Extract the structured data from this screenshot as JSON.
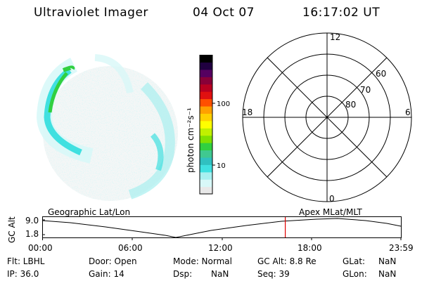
{
  "header": {
    "instrument": "Ultraviolet Imager",
    "date": "04 Oct 07",
    "time": "16:17:02 UT"
  },
  "colorbar": {
    "unit_label": "photon cm⁻²s⁻¹",
    "ticks": [
      "100",
      "10"
    ],
    "scale": "log",
    "colors": [
      "#e8e8e8",
      "#d8f8f8",
      "#a8f0f0",
      "#40e0e0",
      "#30c0c0",
      "#40c890",
      "#30d040",
      "#80e000",
      "#c0f000",
      "#ffff00",
      "#ffd000",
      "#ffa000",
      "#ff5000",
      "#e01010",
      "#b80020",
      "#880038",
      "#550060",
      "#200040",
      "#000000"
    ]
  },
  "polar_grid": {
    "mlt_labels": {
      "top": "12",
      "bottom": "0",
      "left": "18",
      "right": "6"
    },
    "lat_labels": [
      "60",
      "70",
      "80"
    ]
  },
  "timeline": {
    "y_axis_label": "GC Alt",
    "y_ticks": [
      "9.0",
      "1.8"
    ],
    "left_title": "Geographic Lat/Lon",
    "right_title": "Apex  MLat/MLT",
    "x_ticks": [
      "00:00",
      "06:00",
      "12:00",
      "18:00",
      "23:59"
    ],
    "marker_color": "#e00000"
  },
  "status": {
    "filter": "Flt: LBHL",
    "ip": "IP: 36.0",
    "door": "Door: Open",
    "gain": "Gain: 14",
    "mode": "Mode: Normal",
    "dsp_label": "Dsp:",
    "dsp_value": "NaN",
    "gc_alt": "GC Alt: 8.8 Re",
    "seq": "Seq: 39",
    "glat_label": "GLat:",
    "glat_value": "NaN",
    "glon_label": "GLon:",
    "glon_value": "NaN"
  }
}
